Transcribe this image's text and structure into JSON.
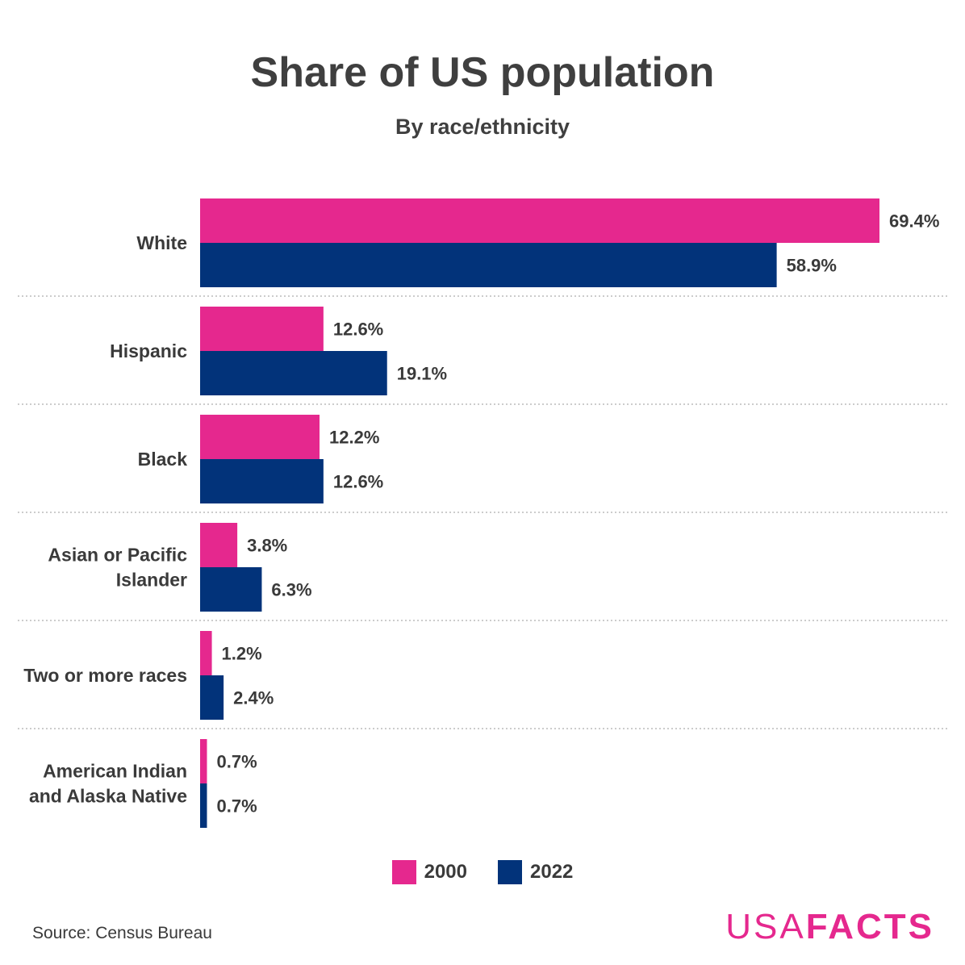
{
  "header": {
    "title": "Share of US population",
    "subtitle": "By race/ethnicity"
  },
  "footer": {
    "source": "Source: Census Bureau",
    "brand_part1": "USA",
    "brand_part2": "FACTS"
  },
  "colors": {
    "series_2000": "#e5288e",
    "series_2022": "#02337a",
    "text": "#3a3a3a",
    "grid": "#bbbbbb"
  },
  "chart_data": {
    "type": "bar",
    "orientation": "horizontal",
    "title": "Share of US population",
    "subtitle": "By race/ethnicity",
    "xlabel": "",
    "ylabel": "",
    "xlim": [
      0,
      69.4
    ],
    "grid": false,
    "legend_position": "bottom-center",
    "categories": [
      [
        "White"
      ],
      [
        "Hispanic"
      ],
      [
        "Black"
      ],
      [
        "Asian or Pacific",
        "Islander"
      ],
      [
        "Two or more races"
      ],
      [
        "American Indian",
        "and Alaska Native"
      ]
    ],
    "series": [
      {
        "name": "2000",
        "values": [
          69.4,
          12.6,
          12.2,
          3.8,
          1.2,
          0.7
        ],
        "labels": [
          "69.4%",
          "12.6%",
          "12.2%",
          "3.8%",
          "1.2%",
          "0.7%"
        ]
      },
      {
        "name": "2022",
        "values": [
          58.9,
          19.1,
          12.6,
          6.3,
          2.4,
          0.7
        ],
        "labels": [
          "58.9%",
          "19.1%",
          "12.6%",
          "6.3%",
          "2.4%",
          "0.7%"
        ]
      }
    ]
  }
}
